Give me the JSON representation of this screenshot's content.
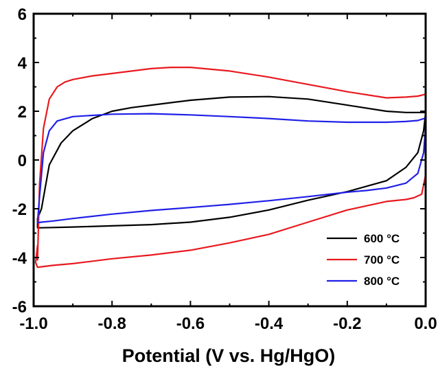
{
  "chart_data": {
    "type": "line",
    "title": "",
    "xlabel": "Potential (V vs. Hg/HgO)",
    "ylabel": "",
    "xlim": [
      -1.0,
      0.0
    ],
    "ylim": [
      -6,
      6
    ],
    "xticks": [
      -1.0,
      -0.8,
      -0.6,
      -0.4,
      -0.2,
      0.0
    ],
    "xtick_labels": [
      "-1.0",
      "-0.8",
      "-0.6",
      "-0.4",
      "-0.2",
      "0.0"
    ],
    "yticks": [
      -6,
      -4,
      -2,
      0,
      2,
      4,
      6
    ],
    "ytick_labels": [
      "-6",
      "-4",
      "-2",
      "0",
      "2",
      "4",
      "6"
    ],
    "grid": false,
    "legend_position": "bottom-right",
    "series": [
      {
        "name": "600 °C",
        "color": "#000000",
        "x": [
          -0.98,
          -0.96,
          -0.93,
          -0.9,
          -0.85,
          -0.8,
          -0.75,
          -0.7,
          -0.6,
          -0.5,
          -0.4,
          -0.3,
          -0.2,
          -0.1,
          -0.05,
          0.0,
          -0.005,
          -0.02,
          -0.05,
          -0.1,
          -0.2,
          -0.3,
          -0.4,
          -0.5,
          -0.6,
          -0.7,
          -0.8,
          -0.9,
          -0.95,
          -0.98,
          -0.99,
          -0.99,
          -0.98
        ],
        "y": [
          -2.0,
          -0.2,
          0.7,
          1.2,
          1.7,
          2.0,
          2.15,
          2.25,
          2.45,
          2.58,
          2.6,
          2.5,
          2.25,
          2.0,
          1.95,
          1.95,
          1.2,
          0.3,
          -0.3,
          -0.85,
          -1.3,
          -1.65,
          -2.05,
          -2.35,
          -2.55,
          -2.65,
          -2.7,
          -2.75,
          -2.77,
          -2.78,
          -2.78,
          -2.4,
          -2.0
        ]
      },
      {
        "name": "700 °C",
        "color": "#e8191f",
        "x": [
          -0.99,
          -0.985,
          -0.975,
          -0.96,
          -0.94,
          -0.92,
          -0.9,
          -0.85,
          -0.8,
          -0.7,
          -0.65,
          -0.6,
          -0.5,
          -0.4,
          -0.3,
          -0.2,
          -0.1,
          -0.05,
          -0.02,
          0.0,
          0.0,
          -0.01,
          -0.03,
          -0.05,
          -0.1,
          -0.2,
          -0.3,
          -0.4,
          -0.5,
          -0.6,
          -0.7,
          -0.8,
          -0.9,
          -0.95,
          -0.98,
          -0.99,
          -0.995,
          -0.99
        ],
        "y": [
          -4.1,
          -1.0,
          1.3,
          2.5,
          3.0,
          3.2,
          3.3,
          3.45,
          3.55,
          3.75,
          3.8,
          3.8,
          3.65,
          3.4,
          3.1,
          2.8,
          2.55,
          2.58,
          2.62,
          2.7,
          -0.6,
          -1.4,
          -1.55,
          -1.62,
          -1.7,
          -2.05,
          -2.55,
          -3.05,
          -3.4,
          -3.7,
          -3.9,
          -4.05,
          -4.25,
          -4.32,
          -4.38,
          -4.4,
          -4.2,
          -3.5
        ]
      },
      {
        "name": "800 °C",
        "color": "#1f1fe8",
        "x": [
          -0.99,
          -0.985,
          -0.975,
          -0.96,
          -0.94,
          -0.9,
          -0.8,
          -0.7,
          -0.6,
          -0.5,
          -0.4,
          -0.3,
          -0.2,
          -0.1,
          -0.05,
          -0.02,
          0.0,
          0.0,
          -0.005,
          -0.02,
          -0.05,
          -0.1,
          -0.15,
          -0.2,
          -0.3,
          -0.4,
          -0.5,
          -0.6,
          -0.7,
          -0.8,
          -0.9,
          -0.95,
          -0.98,
          -0.99
        ],
        "y": [
          -2.55,
          -1.5,
          0.3,
          1.2,
          1.6,
          1.78,
          1.88,
          1.9,
          1.85,
          1.78,
          1.7,
          1.6,
          1.55,
          1.55,
          1.58,
          1.62,
          1.72,
          1.4,
          0.3,
          -0.55,
          -0.95,
          -1.15,
          -1.25,
          -1.32,
          -1.5,
          -1.67,
          -1.82,
          -1.95,
          -2.07,
          -2.22,
          -2.4,
          -2.5,
          -2.55,
          -2.58
        ]
      }
    ]
  }
}
